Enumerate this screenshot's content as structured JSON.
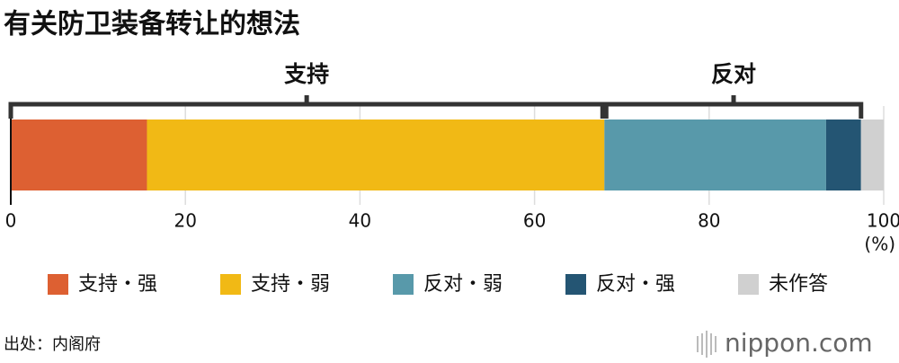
{
  "chart_data": {
    "type": "bar",
    "orientation": "horizontal",
    "stacked": true,
    "title": "有关防卫装备转让的想法",
    "categories": [
      null
    ],
    "series": [
      {
        "name": "支持・强",
        "color": "#dd6032",
        "values": [
          15.6
        ]
      },
      {
        "name": "支持・弱",
        "color": "#f1b915",
        "values": [
          52.4
        ]
      },
      {
        "name": "反对・弱",
        "color": "#5899aa",
        "values": [
          25.4
        ]
      },
      {
        "name": "反对・强",
        "color": "#245573",
        "values": [
          4.0
        ]
      },
      {
        "name": "未作答",
        "color": "#d0d0d0",
        "values": [
          2.6
        ]
      }
    ],
    "annotations": [
      "支持",
      "反对"
    ],
    "xlim": [
      0,
      100
    ],
    "xticks": [
      0,
      20,
      40,
      60,
      80,
      100
    ],
    "xlabel": "(%)",
    "grid": true,
    "source": "出处：内阁府",
    "logo": "nippon.com"
  }
}
